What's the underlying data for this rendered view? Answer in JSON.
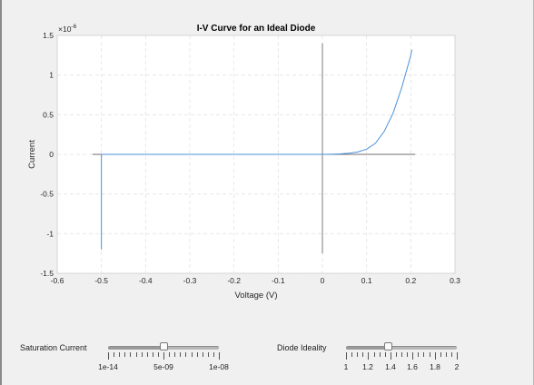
{
  "chart_data": {
    "type": "line",
    "title": "I-V Curve for an Ideal Diode",
    "xlabel": "Voltage (V)",
    "ylabel": "Current",
    "y_exponent_label": "×10",
    "y_exponent_power": "-6",
    "xlim": [
      -0.6,
      0.3
    ],
    "ylim": [
      -1.5e-06,
      1.5e-06
    ],
    "x_ticks": [
      -0.6,
      -0.5,
      -0.4,
      -0.3,
      -0.2,
      -0.1,
      0,
      0.1,
      0.2,
      0.3
    ],
    "x_tick_labels": [
      "-0.6",
      "-0.5",
      "-0.4",
      "-0.3",
      "-0.2",
      "-0.1",
      "0",
      "0.1",
      "0.2",
      "0.3"
    ],
    "y_ticks": [
      -1.5,
      -1,
      -0.5,
      0,
      0.5,
      1,
      1.5
    ],
    "y_tick_labels": [
      "-1.5",
      "-1",
      "-0.5",
      "0",
      "0.5",
      "1",
      "1.5"
    ],
    "grid": true,
    "series": [
      {
        "color": "#4a90d9",
        "x": [
          -0.5,
          -0.5,
          -0.4,
          -0.3,
          -0.2,
          -0.1,
          0.0,
          0.02,
          0.04,
          0.06,
          0.08,
          0.1,
          0.12,
          0.14,
          0.16,
          0.18,
          0.2,
          0.2025
        ],
        "y": [
          -1.2e-06,
          0,
          0,
          0,
          0,
          0,
          0,
          2e-09,
          6e-09,
          1.4e-08,
          3e-08,
          6.5e-08,
          1.4e-07,
          2.9e-07,
          5.2e-07,
          8.5e-07,
          1.25e-06,
          1.32e-06
        ]
      }
    ],
    "reference_lines": [
      {
        "color": "#6e6e6e",
        "x": [
          -0.52,
          0.21
        ],
        "y": [
          0,
          0
        ]
      },
      {
        "color": "#6e6e6e",
        "x": [
          0,
          0
        ],
        "y": [
          -1.25e-06,
          1.4e-06
        ]
      }
    ]
  },
  "controls": {
    "saturation": {
      "label": "Saturation Current",
      "tick_labels": [
        "1e-14",
        "5e-09",
        "1e-08"
      ],
      "value_fraction": 0.5
    },
    "ideality": {
      "label": "Diode Ideality",
      "tick_labels": [
        "1",
        "1.2",
        "1.4",
        "1.6",
        "1.8",
        "2"
      ],
      "value_fraction": 0.38
    }
  }
}
